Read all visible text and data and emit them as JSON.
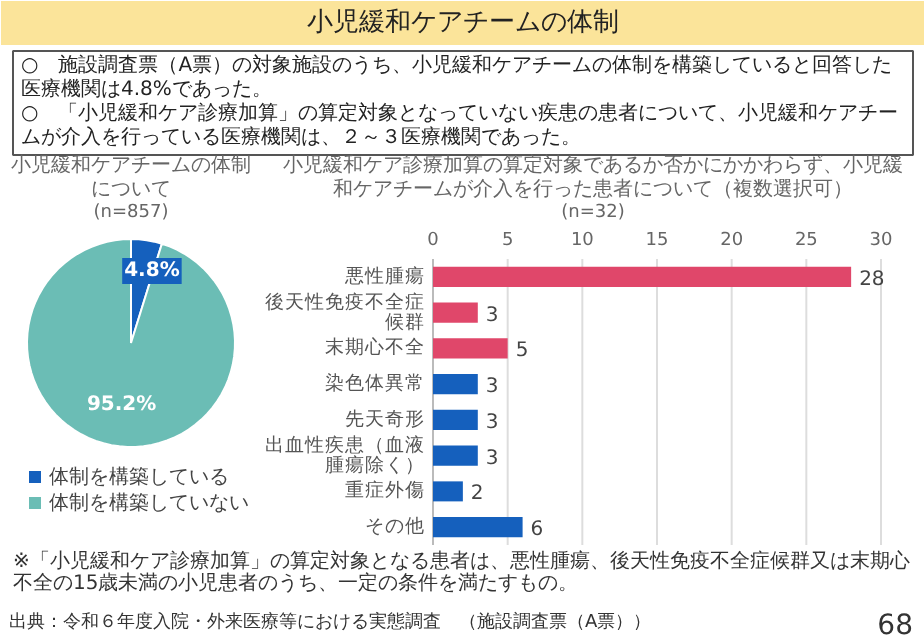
{
  "chart_data": [
    {
      "type": "other",
      "title": "小児緩和ケアチームの体制",
      "annotations": [
        "○　施設調査票（A票）の対象施設のうち、小児緩和ケアチームの体制を構築していると回答した医療機関は4.8%であった。",
        "○　「小児緩和ケア診療加算」の算定対象となっていない疾患の患者について、小児緩和ケアチームが介入を行っている医療機関は、２～３医療機関であった。",
        "出典：令和６年度入院・外来医療等における実態調査　（施設調査票（A票））",
        "68"
      ]
    },
    {
      "type": "pie",
      "title": "小児緩和ケアチームの体制について",
      "subtitle": "(n=857)",
      "categories": [
        "体制を構築している",
        "体制を構築していない"
      ],
      "values": [
        4.8,
        95.2
      ],
      "colors": [
        "#1560bd",
        "#6bbdb5"
      ],
      "value_labels": [
        "4.8%",
        "95.2%"
      ],
      "legend": "bottom"
    },
    {
      "type": "bar",
      "orientation": "horizontal",
      "title": "小児緩和ケア診療加算の算定対象であるか否かにかかわらず、小児緩和ケアチームが介入を行った患者について（複数選択可）",
      "subtitle": "(n=32)",
      "categories": [
        "悪性腫瘍",
        "後天性免疫不全症候群",
        "末期心不全",
        "染色体異常",
        "先天奇形",
        "出血性疾患（血液腫瘍除く）",
        "重症外傷",
        "その他"
      ],
      "values": [
        28,
        3,
        5,
        3,
        3,
        3,
        2,
        6
      ],
      "colors": [
        "#e0476a",
        "#e0476a",
        "#e0476a",
        "#1560bd",
        "#1560bd",
        "#1560bd",
        "#1560bd",
        "#1560bd"
      ],
      "xlim": [
        0,
        30
      ],
      "xticks": [
        0,
        5,
        10,
        15,
        20,
        25,
        30
      ],
      "grid": "x",
      "data_labels": true,
      "annotations": [
        "※「小児緩和ケア診療加算」の算定対象となる患者は、悪性腫瘍、後天性免疫不全症候群又は末期心不全の15歳未満の小児患者のうち、一定の条件を満たすもの。"
      ]
    }
  ]
}
